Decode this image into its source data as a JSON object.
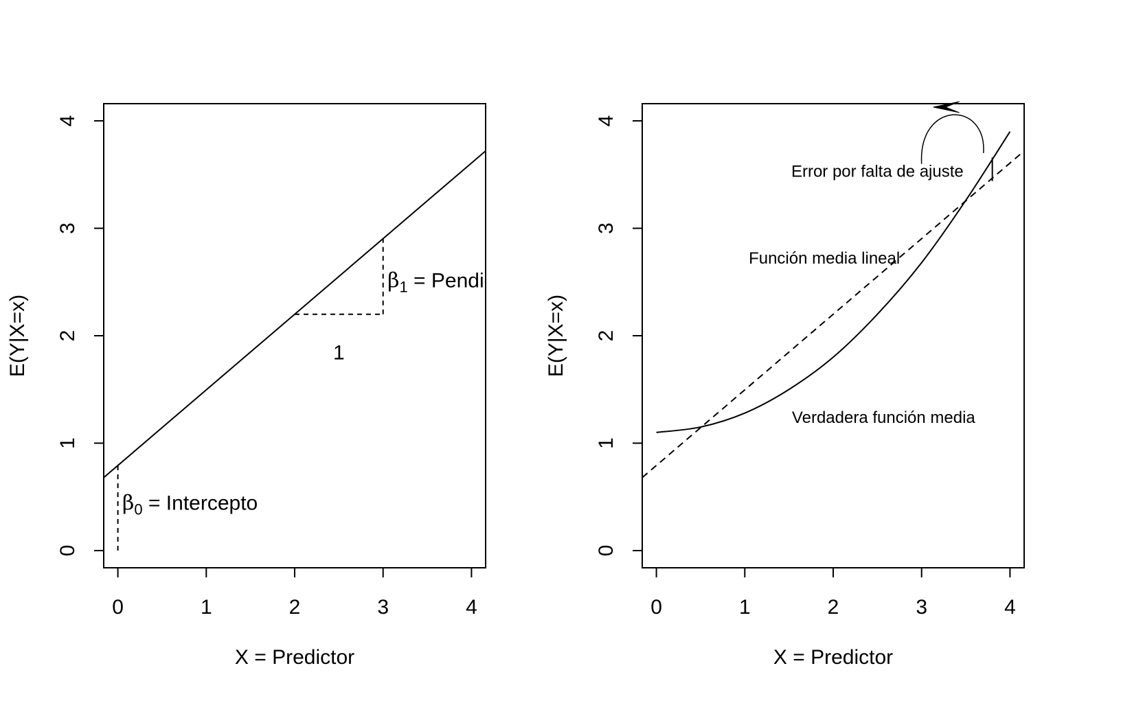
{
  "chart_data": [
    {
      "type": "line",
      "title": "",
      "xlabel": "X = Predictor",
      "ylabel": "E(Y|X=x)",
      "xlim": [
        -0.16,
        4.16
      ],
      "ylim": [
        -0.16,
        4.16
      ],
      "xticks": [
        "0",
        "1",
        "2",
        "3",
        "4"
      ],
      "yticks": [
        "0",
        "1",
        "2",
        "3",
        "4"
      ],
      "series": [
        {
          "line_style": "solid",
          "x": [
            -0.16,
            4.16
          ],
          "y": [
            0.68,
            3.72
          ]
        }
      ],
      "annotations": [
        {
          "kind": "dashed-segment",
          "x": [
            0,
            0
          ],
          "y": [
            0,
            0.8
          ]
        },
        {
          "kind": "dashed-segment",
          "x": [
            2,
            3
          ],
          "y": [
            2.2,
            2.2
          ]
        },
        {
          "kind": "dashed-segment",
          "x": [
            3,
            3
          ],
          "y": [
            2.2,
            2.9
          ]
        },
        {
          "kind": "label",
          "symbol": "β",
          "subscript": "0",
          "text": " = Intercepto",
          "x": 0.05,
          "y": 0.38
        },
        {
          "kind": "label",
          "symbol": "β",
          "subscript": "1",
          "text": " = Pendiente",
          "x": 3.05,
          "y": 2.45
        },
        {
          "kind": "label",
          "text": "1",
          "x": 2.5,
          "y": 1.78
        }
      ]
    },
    {
      "type": "line",
      "title": "",
      "xlabel": "X = Predictor",
      "ylabel": "E(Y|X=x)",
      "xlim": [
        -0.16,
        4.16
      ],
      "ylim": [
        -0.16,
        4.16
      ],
      "xticks": [
        "0",
        "1",
        "2",
        "3",
        "4"
      ],
      "yticks": [
        "0",
        "1",
        "2",
        "3",
        "4"
      ],
      "series": [
        {
          "line_style": "solid",
          "x": [
            0,
            0.5,
            1,
            1.5,
            2,
            2.5,
            3,
            3.5,
            4
          ],
          "y": [
            1.1,
            1.15,
            1.28,
            1.5,
            1.8,
            2.2,
            2.68,
            3.26,
            3.9
          ]
        },
        {
          "line_style": "dashed",
          "x": [
            -0.16,
            4.16
          ],
          "y": [
            0.68,
            3.72
          ]
        }
      ],
      "annotations": [
        {
          "kind": "label",
          "text": "Error por falta de ajuste",
          "x": 2.5,
          "y": 3.48
        },
        {
          "kind": "label",
          "text": "Función media lineal",
          "x": 1.9,
          "y": 2.67
        },
        {
          "kind": "label",
          "text": "Verdadera función media",
          "x": 2.57,
          "y": 1.19
        },
        {
          "kind": "error-segment",
          "x": [
            3.8,
            3.8
          ],
          "y": [
            3.44,
            3.66
          ]
        },
        {
          "kind": "curved-arrow",
          "x": [
            3.0,
            3.7
          ],
          "y": [
            3.6,
            3.7
          ],
          "apex_y": 4.0
        }
      ]
    }
  ]
}
